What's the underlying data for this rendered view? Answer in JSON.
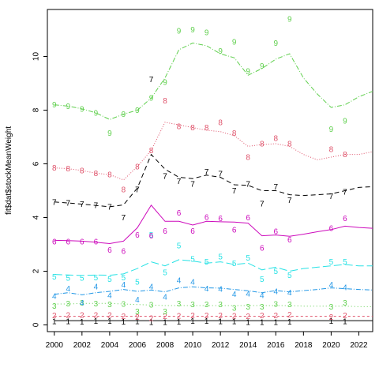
{
  "chart_data": {
    "type": "line",
    "title": "",
    "xlabel": "",
    "ylabel": "fit$dat$stockMeanWeight",
    "xlim": [
      1999.5,
      2023
    ],
    "ylim": [
      -0.25,
      11.75
    ],
    "x_ticks": [
      "2000",
      "2002",
      "2004",
      "2006",
      "2008",
      "2010",
      "2012",
      "2014",
      "2016",
      "2018",
      "2020",
      "2022"
    ],
    "y_ticks": [
      "0",
      "2",
      "4",
      "6",
      "8",
      "10"
    ],
    "grid": false,
    "legend": "none",
    "fit_x": [
      2000,
      2001,
      2002,
      2003,
      2004,
      2005,
      2006,
      2007,
      2008,
      2009,
      2010,
      2011,
      2012,
      2013,
      2014,
      2015,
      2016,
      2017,
      2018,
      2019,
      2020,
      2021,
      2022,
      2023
    ],
    "obs_x": [
      2000,
      2001,
      2002,
      2003,
      2004,
      2005,
      2006,
      2007,
      2008,
      2009,
      2010,
      2011,
      2012,
      2013,
      2014,
      2015,
      2016,
      2017,
      2020,
      2021
    ],
    "series": [
      {
        "label": "1",
        "color": "#000000",
        "dash": "",
        "fit": [
          0.16,
          0.16,
          0.16,
          0.16,
          0.16,
          0.16,
          0.16,
          0.16,
          0.16,
          0.16,
          0.16,
          0.16,
          0.16,
          0.16,
          0.16,
          0.16,
          0.16,
          0.16,
          0.16,
          0.16,
          0.16,
          0.16,
          0.16,
          0.16
        ],
        "obs": [
          0.13,
          0.13,
          0.12,
          0.15,
          0.14,
          0.12,
          0.13,
          0.1,
          0.1,
          0.12,
          0.15,
          0.14,
          0.13,
          0.13,
          0.1,
          0.1,
          0.1,
          0.12,
          0.14,
          0.13
        ]
      },
      {
        "label": "2",
        "color": "#df536b",
        "dash": "3,3",
        "fit": [
          0.32,
          0.32,
          0.32,
          0.32,
          0.32,
          0.32,
          0.32,
          0.32,
          0.32,
          0.32,
          0.32,
          0.32,
          0.32,
          0.32,
          0.32,
          0.32,
          0.32,
          0.32,
          0.32,
          0.32,
          0.32,
          0.32,
          0.32,
          0.32
        ],
        "obs": [
          0.35,
          0.37,
          0.37,
          0.37,
          0.37,
          0.33,
          0.3,
          0.25,
          0.33,
          0.34,
          0.35,
          0.35,
          0.35,
          0.34,
          0.33,
          0.35,
          0.35,
          0.38,
          0.3,
          0.35
        ]
      },
      {
        "label": "3",
        "color": "#61d04f",
        "dash": "1,3",
        "fit": [
          0.78,
          0.78,
          0.8,
          0.8,
          0.8,
          0.78,
          0.76,
          0.74,
          0.72,
          0.72,
          0.72,
          0.72,
          0.72,
          0.72,
          0.72,
          0.72,
          0.72,
          0.72,
          0.7,
          0.7,
          0.7,
          0.7,
          0.68,
          0.68
        ],
        "obs": [
          0.7,
          0.8,
          0.82,
          0.8,
          0.77,
          0.78,
          0.5,
          0.75,
          0.5,
          0.8,
          0.76,
          0.77,
          0.77,
          0.63,
          0.68,
          0.68,
          0.78,
          0.76,
          0.67,
          0.83
        ]
      },
      {
        "label": "4",
        "color": "#2297e6",
        "dash": "6,2,1,2",
        "fit": [
          1.14,
          1.2,
          1.12,
          1.2,
          1.25,
          1.32,
          1.25,
          1.3,
          1.23,
          1.38,
          1.42,
          1.38,
          1.37,
          1.32,
          1.27,
          1.2,
          1.28,
          1.23,
          1.28,
          1.32,
          1.38,
          1.35,
          1.32,
          1.3
        ],
        "obs": [
          1.07,
          1.36,
          0.83,
          1.42,
          1.11,
          1.5,
          0.94,
          1.43,
          1.04,
          1.66,
          1.6,
          1.35,
          1.34,
          1.15,
          1.16,
          1.1,
          1.25,
          1.2,
          1.5,
          1.4
        ]
      },
      {
        "label": "5",
        "color": "#28e2e5",
        "dash": "10,4",
        "fit": [
          1.88,
          1.86,
          1.84,
          1.86,
          1.85,
          1.9,
          2.1,
          2.35,
          2.2,
          2.43,
          2.38,
          2.3,
          2.35,
          2.25,
          2.3,
          2.05,
          2.15,
          2.0,
          2.1,
          2.15,
          2.2,
          2.25,
          2.2,
          2.2
        ],
        "obs": [
          1.8,
          1.75,
          1.75,
          1.77,
          1.7,
          1.77,
          1.6,
          3.35,
          1.95,
          2.95,
          2.45,
          2.35,
          2.55,
          2.3,
          2.5,
          1.7,
          2.0,
          1.85,
          2.35,
          2.35
        ]
      },
      {
        "label": "6",
        "color": "#cd0bbc",
        "dash": "",
        "fit": [
          3.15,
          3.14,
          3.12,
          3.08,
          3.03,
          3.12,
          3.62,
          4.46,
          3.86,
          3.86,
          3.72,
          3.86,
          3.84,
          3.83,
          3.79,
          3.32,
          3.35,
          3.3,
          3.38,
          3.47,
          3.55,
          3.68,
          3.63,
          3.6
        ],
        "obs": [
          3.1,
          3.1,
          3.1,
          3.1,
          2.8,
          2.75,
          3.35,
          3.33,
          3.5,
          4.17,
          3.5,
          4.01,
          3.97,
          3.55,
          4.0,
          2.87,
          3.48,
          3.17,
          3.6,
          3.97
        ]
      },
      {
        "label": "7",
        "color": "#000000",
        "dash": "6,4",
        "fit": [
          4.58,
          4.54,
          4.5,
          4.45,
          4.4,
          4.47,
          5.1,
          6.35,
          5.8,
          5.5,
          5.45,
          5.58,
          5.5,
          5.22,
          5.2,
          5.0,
          5.0,
          4.85,
          4.82,
          4.85,
          4.88,
          5.0,
          5.12,
          5.15
        ],
        "obs": [
          4.58,
          4.54,
          4.5,
          4.45,
          4.4,
          4.0,
          5.05,
          9.15,
          5.55,
          5.35,
          5.25,
          5.71,
          5.63,
          5.0,
          5.25,
          4.52,
          5.15,
          4.65,
          4.8,
          4.95
        ]
      },
      {
        "label": "8",
        "color": "#df536b",
        "dash": "1,2",
        "fit": [
          5.85,
          5.82,
          5.75,
          5.65,
          5.6,
          5.4,
          5.9,
          6.5,
          7.55,
          7.45,
          7.35,
          7.25,
          7.2,
          7.05,
          6.65,
          6.72,
          6.75,
          6.65,
          6.35,
          6.15,
          6.25,
          6.35,
          6.35,
          6.45
        ],
        "obs": [
          5.85,
          5.82,
          5.75,
          5.65,
          5.6,
          5.05,
          5.9,
          6.5,
          8.35,
          7.4,
          7.35,
          7.35,
          7.55,
          7.15,
          6.25,
          6.75,
          6.95,
          6.75,
          6.55,
          6.35
        ]
      },
      {
        "label": "9",
        "color": "#61d04f",
        "dash": "6,2,1,2",
        "fit": [
          8.2,
          8.15,
          8.05,
          7.9,
          7.65,
          7.85,
          8.0,
          8.45,
          9.2,
          10.25,
          10.5,
          10.4,
          10.1,
          9.95,
          9.3,
          9.55,
          9.9,
          10.1,
          9.2,
          8.6,
          8.1,
          8.2,
          8.5,
          8.7
        ],
        "obs": [
          8.2,
          8.15,
          8.05,
          7.9,
          7.15,
          7.85,
          8.0,
          8.45,
          9.05,
          10.95,
          11.0,
          10.9,
          10.2,
          10.55,
          9.45,
          9.65,
          10.5,
          11.4,
          7.3,
          7.6
        ]
      }
    ]
  }
}
